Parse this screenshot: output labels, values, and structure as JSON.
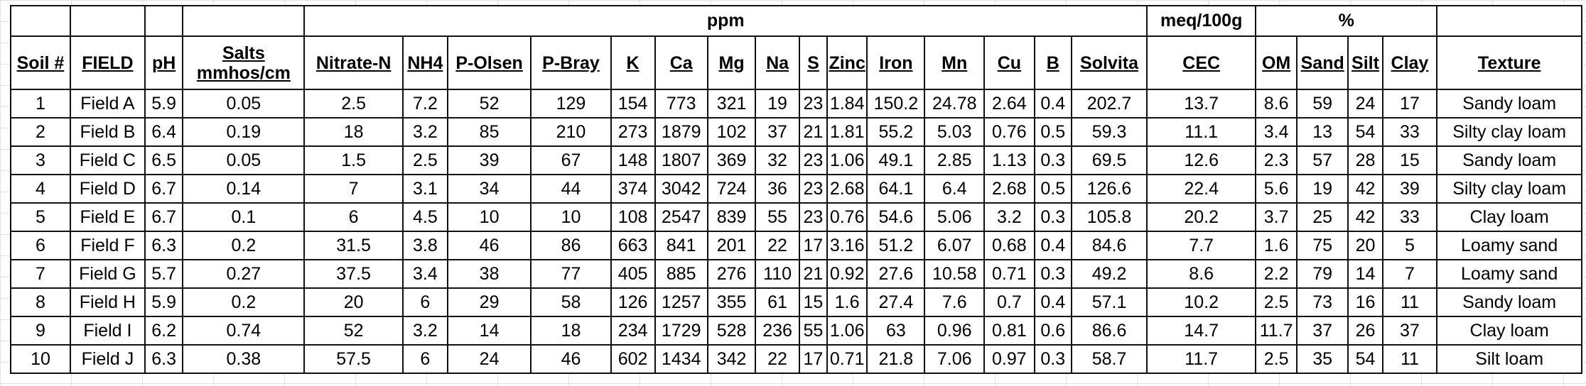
{
  "group_headers": {
    "ppm": "ppm",
    "cec_unit": "meq/100g",
    "percent": "%"
  },
  "columns": [
    {
      "key": "soil",
      "label": "Soil #"
    },
    {
      "key": "field",
      "label": "FIELD"
    },
    {
      "key": "ph",
      "label": "pH"
    },
    {
      "key": "salts",
      "label": "Salts mmhos/cm"
    },
    {
      "key": "nitrate",
      "label": "Nitrate-N"
    },
    {
      "key": "nh4",
      "label": "NH4"
    },
    {
      "key": "p_olsen",
      "label": "P-Olsen"
    },
    {
      "key": "p_bray",
      "label": "P-Bray"
    },
    {
      "key": "k",
      "label": "K"
    },
    {
      "key": "ca",
      "label": "Ca"
    },
    {
      "key": "mg",
      "label": "Mg"
    },
    {
      "key": "na",
      "label": "Na"
    },
    {
      "key": "s",
      "label": "S"
    },
    {
      "key": "zinc",
      "label": "Zinc"
    },
    {
      "key": "iron",
      "label": "Iron"
    },
    {
      "key": "mn",
      "label": "Mn"
    },
    {
      "key": "cu",
      "label": "Cu"
    },
    {
      "key": "b",
      "label": "B"
    },
    {
      "key": "solvita",
      "label": "Solvita"
    },
    {
      "key": "cec",
      "label": "CEC"
    },
    {
      "key": "om",
      "label": "OM"
    },
    {
      "key": "sand",
      "label": "Sand"
    },
    {
      "key": "silt",
      "label": "Silt"
    },
    {
      "key": "clay",
      "label": "Clay"
    },
    {
      "key": "texture",
      "label": "Texture"
    }
  ],
  "rows": [
    [
      "1",
      "Field A",
      "5.9",
      "0.05",
      "2.5",
      "7.2",
      "52",
      "129",
      "154",
      "773",
      "321",
      "19",
      "23",
      "1.84",
      "150.2",
      "24.78",
      "2.64",
      "0.4",
      "202.7",
      "13.7",
      "8.6",
      "59",
      "24",
      "17",
      "Sandy loam"
    ],
    [
      "2",
      "Field B",
      "6.4",
      "0.19",
      "18",
      "3.2",
      "85",
      "210",
      "273",
      "1879",
      "102",
      "37",
      "21",
      "1.81",
      "55.2",
      "5.03",
      "0.76",
      "0.5",
      "59.3",
      "11.1",
      "3.4",
      "13",
      "54",
      "33",
      "Silty clay loam"
    ],
    [
      "3",
      "Field C",
      "6.5",
      "0.05",
      "1.5",
      "2.5",
      "39",
      "67",
      "148",
      "1807",
      "369",
      "32",
      "23",
      "1.06",
      "49.1",
      "2.85",
      "1.13",
      "0.3",
      "69.5",
      "12.6",
      "2.3",
      "57",
      "28",
      "15",
      "Sandy loam"
    ],
    [
      "4",
      "Field D",
      "6.7",
      "0.14",
      "7",
      "3.1",
      "34",
      "44",
      "374",
      "3042",
      "724",
      "36",
      "23",
      "2.68",
      "64.1",
      "6.4",
      "2.68",
      "0.5",
      "126.6",
      "22.4",
      "5.6",
      "19",
      "42",
      "39",
      "Silty clay loam"
    ],
    [
      "5",
      "Field E",
      "6.7",
      "0.1",
      "6",
      "4.5",
      "10",
      "10",
      "108",
      "2547",
      "839",
      "55",
      "23",
      "0.76",
      "54.6",
      "5.06",
      "3.2",
      "0.3",
      "105.8",
      "20.2",
      "3.7",
      "25",
      "42",
      "33",
      "Clay loam"
    ],
    [
      "6",
      "Field F",
      "6.3",
      "0.2",
      "31.5",
      "3.8",
      "46",
      "86",
      "663",
      "841",
      "201",
      "22",
      "17",
      "3.16",
      "51.2",
      "6.07",
      "0.68",
      "0.4",
      "84.6",
      "7.7",
      "1.6",
      "75",
      "20",
      "5",
      "Loamy sand"
    ],
    [
      "7",
      "Field G",
      "5.7",
      "0.27",
      "37.5",
      "3.4",
      "38",
      "77",
      "405",
      "885",
      "276",
      "110",
      "21",
      "0.92",
      "27.6",
      "10.58",
      "0.71",
      "0.3",
      "49.2",
      "8.6",
      "2.2",
      "79",
      "14",
      "7",
      "Loamy sand"
    ],
    [
      "8",
      "Field H",
      "5.9",
      "0.2",
      "20",
      "6",
      "29",
      "58",
      "126",
      "1257",
      "355",
      "61",
      "15",
      "1.6",
      "27.4",
      "7.6",
      "0.7",
      "0.4",
      "57.1",
      "10.2",
      "2.5",
      "73",
      "16",
      "11",
      "Sandy loam"
    ],
    [
      "9",
      "Field I",
      "6.2",
      "0.74",
      "52",
      "3.2",
      "14",
      "18",
      "234",
      "1729",
      "528",
      "236",
      "55",
      "1.06",
      "63",
      "0.96",
      "0.81",
      "0.6",
      "86.6",
      "14.7",
      "11.7",
      "37",
      "26",
      "37",
      "Clay loam"
    ],
    [
      "10",
      "Field J",
      "6.3",
      "0.38",
      "57.5",
      "6",
      "24",
      "46",
      "602",
      "1434",
      "342",
      "22",
      "17",
      "0.71",
      "21.8",
      "7.06",
      "0.97",
      "0.3",
      "58.7",
      "11.7",
      "2.5",
      "35",
      "54",
      "11",
      "Silt loam"
    ]
  ]
}
